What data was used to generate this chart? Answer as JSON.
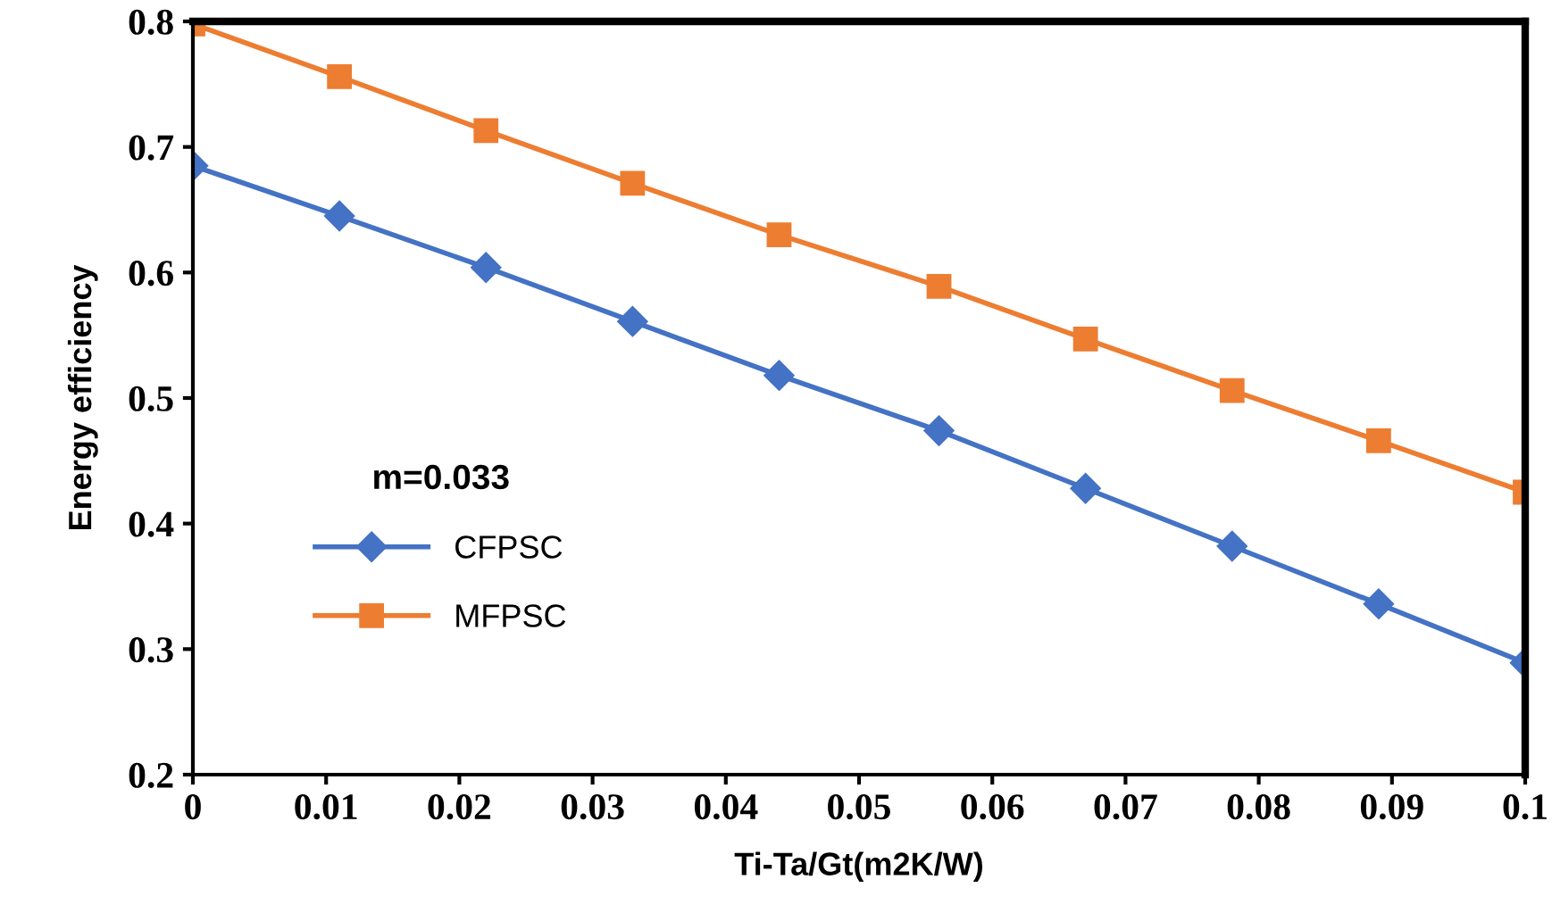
{
  "chart_data": {
    "type": "line",
    "xlabel": "Ti-Ta/Gt(m2K/W)",
    "ylabel": "Energy efficiency",
    "x": [
      0,
      0.011,
      0.022,
      0.033,
      0.044,
      0.056,
      0.067,
      0.078,
      0.089,
      0.1
    ],
    "series": [
      {
        "name": "CFPSC",
        "color": "#4472c4",
        "marker": "diamond",
        "values": [
          0.685,
          0.645,
          0.604,
          0.561,
          0.518,
          0.474,
          0.428,
          0.382,
          0.336,
          0.289
        ]
      },
      {
        "name": "MFPSC",
        "color": "#ed7d31",
        "marker": "square",
        "values": [
          0.798,
          0.756,
          0.713,
          0.671,
          0.63,
          0.589,
          0.547,
          0.506,
          0.466,
          0.425
        ]
      }
    ],
    "xlim": [
      0,
      0.1
    ],
    "xticks": [
      0,
      0.01,
      0.02,
      0.03,
      0.04,
      0.05,
      0.06,
      0.07,
      0.08,
      0.09,
      0.1
    ],
    "ylim": [
      0.2,
      0.8
    ],
    "yticks": [
      0.2,
      0.3,
      0.4,
      0.5,
      0.6,
      0.7,
      0.8
    ],
    "grid": false,
    "legend": "left",
    "line_style": "solid",
    "legend_title": "m=0.033"
  }
}
